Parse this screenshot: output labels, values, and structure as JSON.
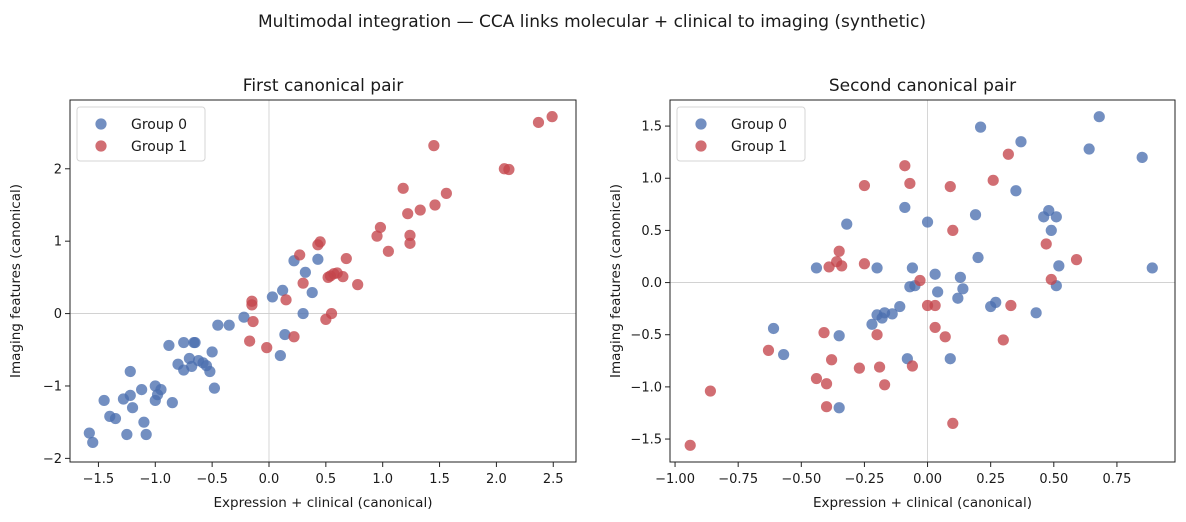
{
  "suptitle": "Multimodal integration — CCA links molecular + clinical to imaging (synthetic)",
  "chart_data": [
    {
      "type": "scatter",
      "title": "First canonical pair",
      "xlabel": "Expression + clinical (canonical)",
      "ylabel": "Imaging features (canonical)",
      "xlim": [
        -1.75,
        2.7
      ],
      "ylim": [
        -2.05,
        2.95
      ],
      "xticks": [
        -1.5,
        -1.0,
        -0.5,
        0.0,
        0.5,
        1.0,
        1.5,
        2.0,
        2.5
      ],
      "xtick_labels": [
        "−1.5",
        "−1.0",
        "−0.5",
        "0.0",
        "0.5",
        "1.0",
        "1.5",
        "2.0",
        "2.5"
      ],
      "yticks": [
        -2,
        -1,
        0,
        1,
        2
      ],
      "ytick_labels": [
        "−2",
        "−1",
        "0",
        "1",
        "2"
      ],
      "grid": false,
      "zero_lines": true,
      "legend": "top-left",
      "series": [
        {
          "name": "Group 0",
          "color": "#4c6faf",
          "points": [
            [
              -1.58,
              -1.65
            ],
            [
              -1.55,
              -1.78
            ],
            [
              -1.45,
              -1.2
            ],
            [
              -1.4,
              -1.42
            ],
            [
              -1.35,
              -1.45
            ],
            [
              -1.28,
              -1.18
            ],
            [
              -1.25,
              -1.67
            ],
            [
              -1.22,
              -0.8
            ],
            [
              -1.22,
              -1.13
            ],
            [
              -1.2,
              -1.3
            ],
            [
              -1.12,
              -1.05
            ],
            [
              -1.1,
              -1.5
            ],
            [
              -1.08,
              -1.67
            ],
            [
              -1.0,
              -1.2
            ],
            [
              -1.0,
              -1.0
            ],
            [
              -0.98,
              -1.12
            ],
            [
              -0.95,
              -1.05
            ],
            [
              -0.88,
              -0.44
            ],
            [
              -0.85,
              -1.23
            ],
            [
              -0.8,
              -0.7
            ],
            [
              -0.75,
              -0.78
            ],
            [
              -0.75,
              -0.4
            ],
            [
              -0.7,
              -0.62
            ],
            [
              -0.68,
              -0.73
            ],
            [
              -0.66,
              -0.4
            ],
            [
              -0.65,
              -0.4
            ],
            [
              -0.62,
              -0.65
            ],
            [
              -0.58,
              -0.68
            ],
            [
              -0.55,
              -0.72
            ],
            [
              -0.52,
              -0.8
            ],
            [
              -0.5,
              -0.53
            ],
            [
              -0.48,
              -1.03
            ],
            [
              -0.45,
              -0.16
            ],
            [
              -0.35,
              -0.16
            ],
            [
              -0.22,
              -0.05
            ],
            [
              0.03,
              0.23
            ],
            [
              0.1,
              -0.58
            ],
            [
              0.12,
              0.32
            ],
            [
              0.14,
              -0.29
            ],
            [
              0.22,
              0.73
            ],
            [
              0.3,
              0.0
            ],
            [
              0.32,
              0.57
            ],
            [
              0.38,
              0.29
            ],
            [
              0.43,
              0.75
            ]
          ]
        },
        {
          "name": "Group 1",
          "color": "#c4454b",
          "points": [
            [
              -0.17,
              -0.38
            ],
            [
              -0.15,
              0.12
            ],
            [
              -0.15,
              0.17
            ],
            [
              -0.14,
              -0.11
            ],
            [
              -0.02,
              -0.47
            ],
            [
              0.15,
              0.19
            ],
            [
              0.22,
              -0.32
            ],
            [
              0.27,
              0.81
            ],
            [
              0.3,
              0.42
            ],
            [
              0.43,
              0.95
            ],
            [
              0.45,
              0.99
            ],
            [
              0.5,
              -0.08
            ],
            [
              0.52,
              0.5
            ],
            [
              0.54,
              0.52
            ],
            [
              0.55,
              0.0
            ],
            [
              0.57,
              0.55
            ],
            [
              0.6,
              0.56
            ],
            [
              0.65,
              0.51
            ],
            [
              0.68,
              0.76
            ],
            [
              0.78,
              0.4
            ],
            [
              0.95,
              1.07
            ],
            [
              0.98,
              1.19
            ],
            [
              1.05,
              0.86
            ],
            [
              1.18,
              1.73
            ],
            [
              1.22,
              1.38
            ],
            [
              1.24,
              0.97
            ],
            [
              1.24,
              1.08
            ],
            [
              1.33,
              1.43
            ],
            [
              1.45,
              2.32
            ],
            [
              1.46,
              1.5
            ],
            [
              1.56,
              1.66
            ],
            [
              2.07,
              2.0
            ],
            [
              2.11,
              1.99
            ],
            [
              2.37,
              2.64
            ],
            [
              2.49,
              2.72
            ]
          ]
        }
      ]
    },
    {
      "type": "scatter",
      "title": "Second canonical pair",
      "xlabel": "Expression + clinical (canonical)",
      "ylabel": "Imaging features (canonical)",
      "xlim": [
        -1.02,
        0.98
      ],
      "ylim": [
        -1.72,
        1.75
      ],
      "xticks": [
        -1.0,
        -0.75,
        -0.5,
        -0.25,
        0.0,
        0.25,
        0.5,
        0.75
      ],
      "xtick_labels": [
        "−1.00",
        "−0.75",
        "−0.50",
        "−0.25",
        "0.00",
        "0.25",
        "0.50",
        "0.75"
      ],
      "yticks": [
        -1.5,
        -1.0,
        -0.5,
        0.0,
        0.5,
        1.0,
        1.5
      ],
      "ytick_labels": [
        "−1.5",
        "−1.0",
        "−0.5",
        "0.0",
        "0.5",
        "1.0",
        "1.5"
      ],
      "grid": false,
      "zero_lines": true,
      "legend": "top-left",
      "series": [
        {
          "name": "Group 0",
          "color": "#4c6faf",
          "points": [
            [
              -0.61,
              -0.44
            ],
            [
              -0.57,
              -0.69
            ],
            [
              -0.44,
              0.14
            ],
            [
              -0.35,
              -0.51
            ],
            [
              -0.35,
              -1.2
            ],
            [
              -0.32,
              0.56
            ],
            [
              -0.22,
              -0.4
            ],
            [
              -0.2,
              0.14
            ],
            [
              -0.2,
              -0.31
            ],
            [
              -0.18,
              -0.34
            ],
            [
              -0.17,
              -0.29
            ],
            [
              -0.14,
              -0.3
            ],
            [
              -0.11,
              -0.23
            ],
            [
              -0.09,
              0.72
            ],
            [
              -0.08,
              -0.73
            ],
            [
              -0.07,
              -0.04
            ],
            [
              -0.06,
              0.14
            ],
            [
              -0.05,
              -0.03
            ],
            [
              0.0,
              0.58
            ],
            [
              0.03,
              0.08
            ],
            [
              0.04,
              -0.09
            ],
            [
              0.09,
              -0.73
            ],
            [
              0.12,
              -0.15
            ],
            [
              0.13,
              0.05
            ],
            [
              0.14,
              -0.06
            ],
            [
              0.19,
              0.65
            ],
            [
              0.2,
              0.24
            ],
            [
              0.21,
              1.49
            ],
            [
              0.25,
              -0.23
            ],
            [
              0.27,
              -0.19
            ],
            [
              0.35,
              0.88
            ],
            [
              0.37,
              1.35
            ],
            [
              0.43,
              -0.29
            ],
            [
              0.46,
              0.63
            ],
            [
              0.48,
              0.69
            ],
            [
              0.49,
              0.5
            ],
            [
              0.51,
              0.63
            ],
            [
              0.51,
              -0.03
            ],
            [
              0.52,
              0.16
            ],
            [
              0.64,
              1.28
            ],
            [
              0.68,
              1.59
            ],
            [
              0.85,
              1.2
            ],
            [
              0.89,
              0.14
            ]
          ]
        },
        {
          "name": "Group 1",
          "color": "#c4454b",
          "points": [
            [
              -0.94,
              -1.56
            ],
            [
              -0.86,
              -1.04
            ],
            [
              -0.63,
              -0.65
            ],
            [
              -0.44,
              -0.92
            ],
            [
              -0.41,
              -0.48
            ],
            [
              -0.4,
              -0.97
            ],
            [
              -0.4,
              -1.19
            ],
            [
              -0.39,
              0.15
            ],
            [
              -0.38,
              -0.74
            ],
            [
              -0.36,
              0.2
            ],
            [
              -0.35,
              0.3
            ],
            [
              -0.34,
              0.16
            ],
            [
              -0.27,
              -0.82
            ],
            [
              -0.25,
              0.93
            ],
            [
              -0.25,
              0.18
            ],
            [
              -0.2,
              -0.5
            ],
            [
              -0.19,
              -0.81
            ],
            [
              -0.17,
              -0.98
            ],
            [
              -0.09,
              1.12
            ],
            [
              -0.07,
              0.95
            ],
            [
              -0.06,
              -0.8
            ],
            [
              -0.03,
              0.02
            ],
            [
              0.0,
              -0.22
            ],
            [
              0.03,
              -0.43
            ],
            [
              0.03,
              -0.22
            ],
            [
              0.07,
              -0.52
            ],
            [
              0.09,
              0.92
            ],
            [
              0.1,
              0.5
            ],
            [
              0.1,
              -1.35
            ],
            [
              0.26,
              0.98
            ],
            [
              0.3,
              -0.55
            ],
            [
              0.32,
              1.23
            ],
            [
              0.33,
              -0.22
            ],
            [
              0.47,
              0.37
            ],
            [
              0.49,
              0.03
            ],
            [
              0.59,
              0.22
            ]
          ]
        }
      ]
    }
  ]
}
